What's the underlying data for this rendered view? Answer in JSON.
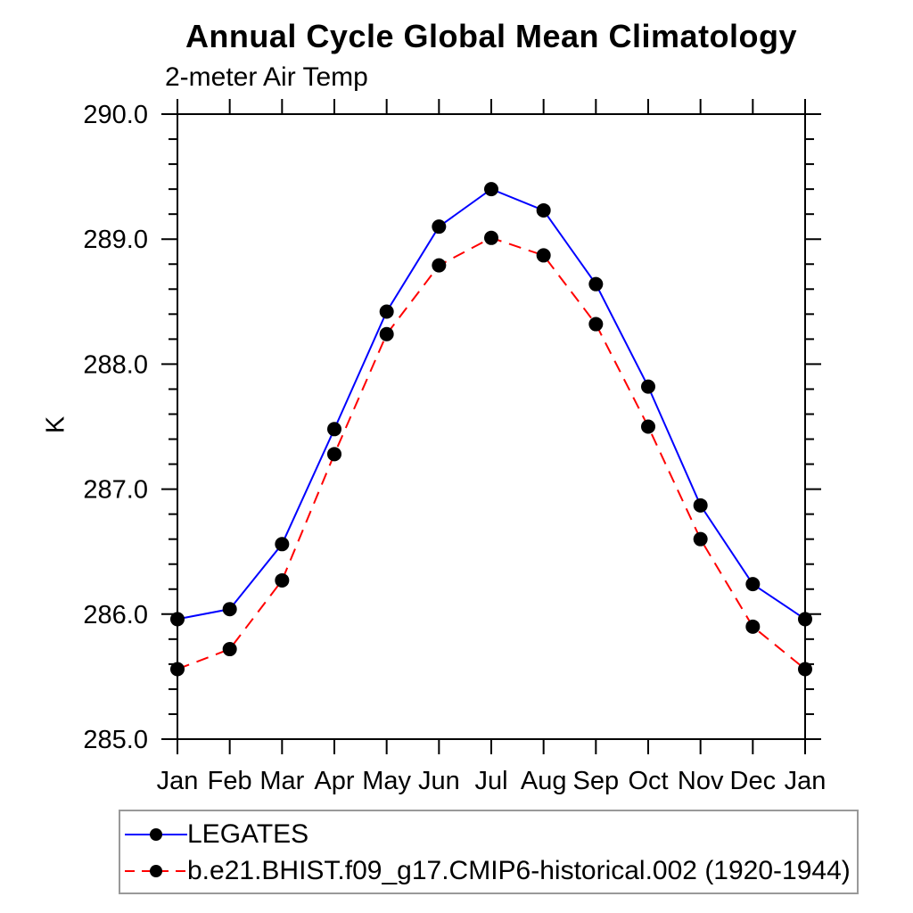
{
  "chart_data": {
    "type": "line",
    "title": "Annual Cycle Global Mean Climatology",
    "subtitle": "2-meter Air Temp",
    "ylabel": "K",
    "xlabel": "",
    "categories": [
      "Jan",
      "Feb",
      "Mar",
      "Apr",
      "May",
      "Jun",
      "Jul",
      "Aug",
      "Sep",
      "Oct",
      "Nov",
      "Dec",
      "Jan"
    ],
    "ylim": [
      285.0,
      290.0
    ],
    "ytick_values": [
      285.0,
      286.0,
      287.0,
      288.0,
      289.0,
      290.0
    ],
    "ytick_labels": [
      "285.0",
      "286.0",
      "287.0",
      "288.0",
      "289.0",
      "290.0"
    ],
    "ytick_minor_step": 0.2,
    "grid": false,
    "legend_position": "bottom-left",
    "marker": "filled-circle",
    "marker_color": "#000000",
    "axis_color": "#000000",
    "series": [
      {
        "name": "LEGATES",
        "color": "#0000ff",
        "style": "solid",
        "values": [
          285.96,
          286.04,
          286.56,
          287.48,
          288.42,
          289.1,
          289.4,
          289.23,
          288.64,
          287.82,
          286.87,
          286.24,
          285.96
        ]
      },
      {
        "name": "b.e21.BHIST.f09_g17.CMIP6-historical.002 (1920-1944)",
        "color": "#ff0000",
        "style": "dashed",
        "values": [
          285.56,
          285.72,
          286.27,
          287.28,
          288.24,
          288.79,
          289.01,
          288.87,
          288.32,
          287.5,
          286.6,
          285.9,
          285.56
        ]
      }
    ]
  }
}
